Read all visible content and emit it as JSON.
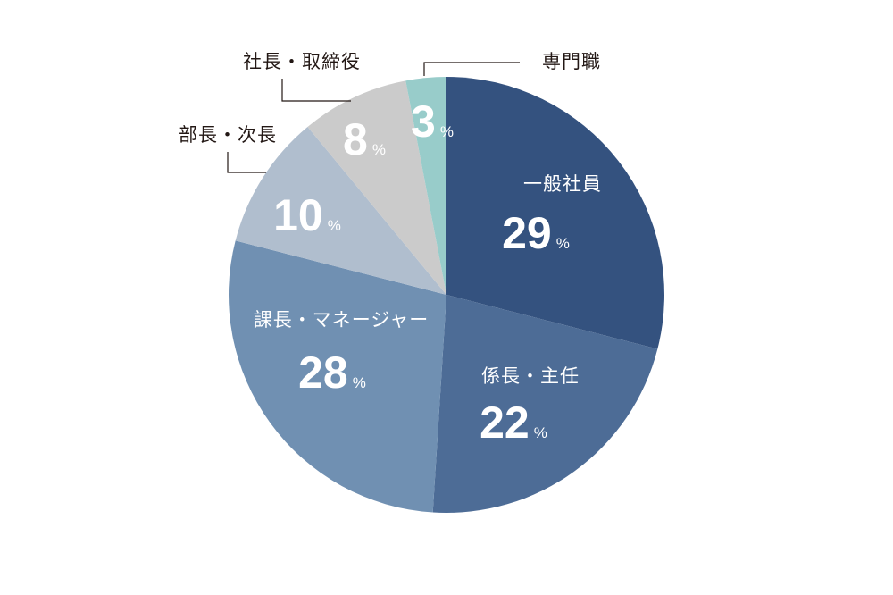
{
  "chart_data": {
    "type": "pie",
    "title": "",
    "categories": [
      "一般社員",
      "係長・主任",
      "課長・マネージャー",
      "部長・次長",
      "社長・取締役",
      "専門職"
    ],
    "values": [
      29,
      22,
      28,
      10,
      8,
      3
    ],
    "unit": "%",
    "colors": [
      "#34527f",
      "#4d6c96",
      "#7090b2",
      "#b0bece",
      "#cbcbcb",
      "#98ccca"
    ],
    "label_colors": [
      "#ffffff",
      "#ffffff",
      "#ffffff",
      "#ffffff",
      "#ffffff",
      "#ffffff"
    ],
    "start_angle": "12 o'clock",
    "direction": "clockwise",
    "legend": "none"
  }
}
